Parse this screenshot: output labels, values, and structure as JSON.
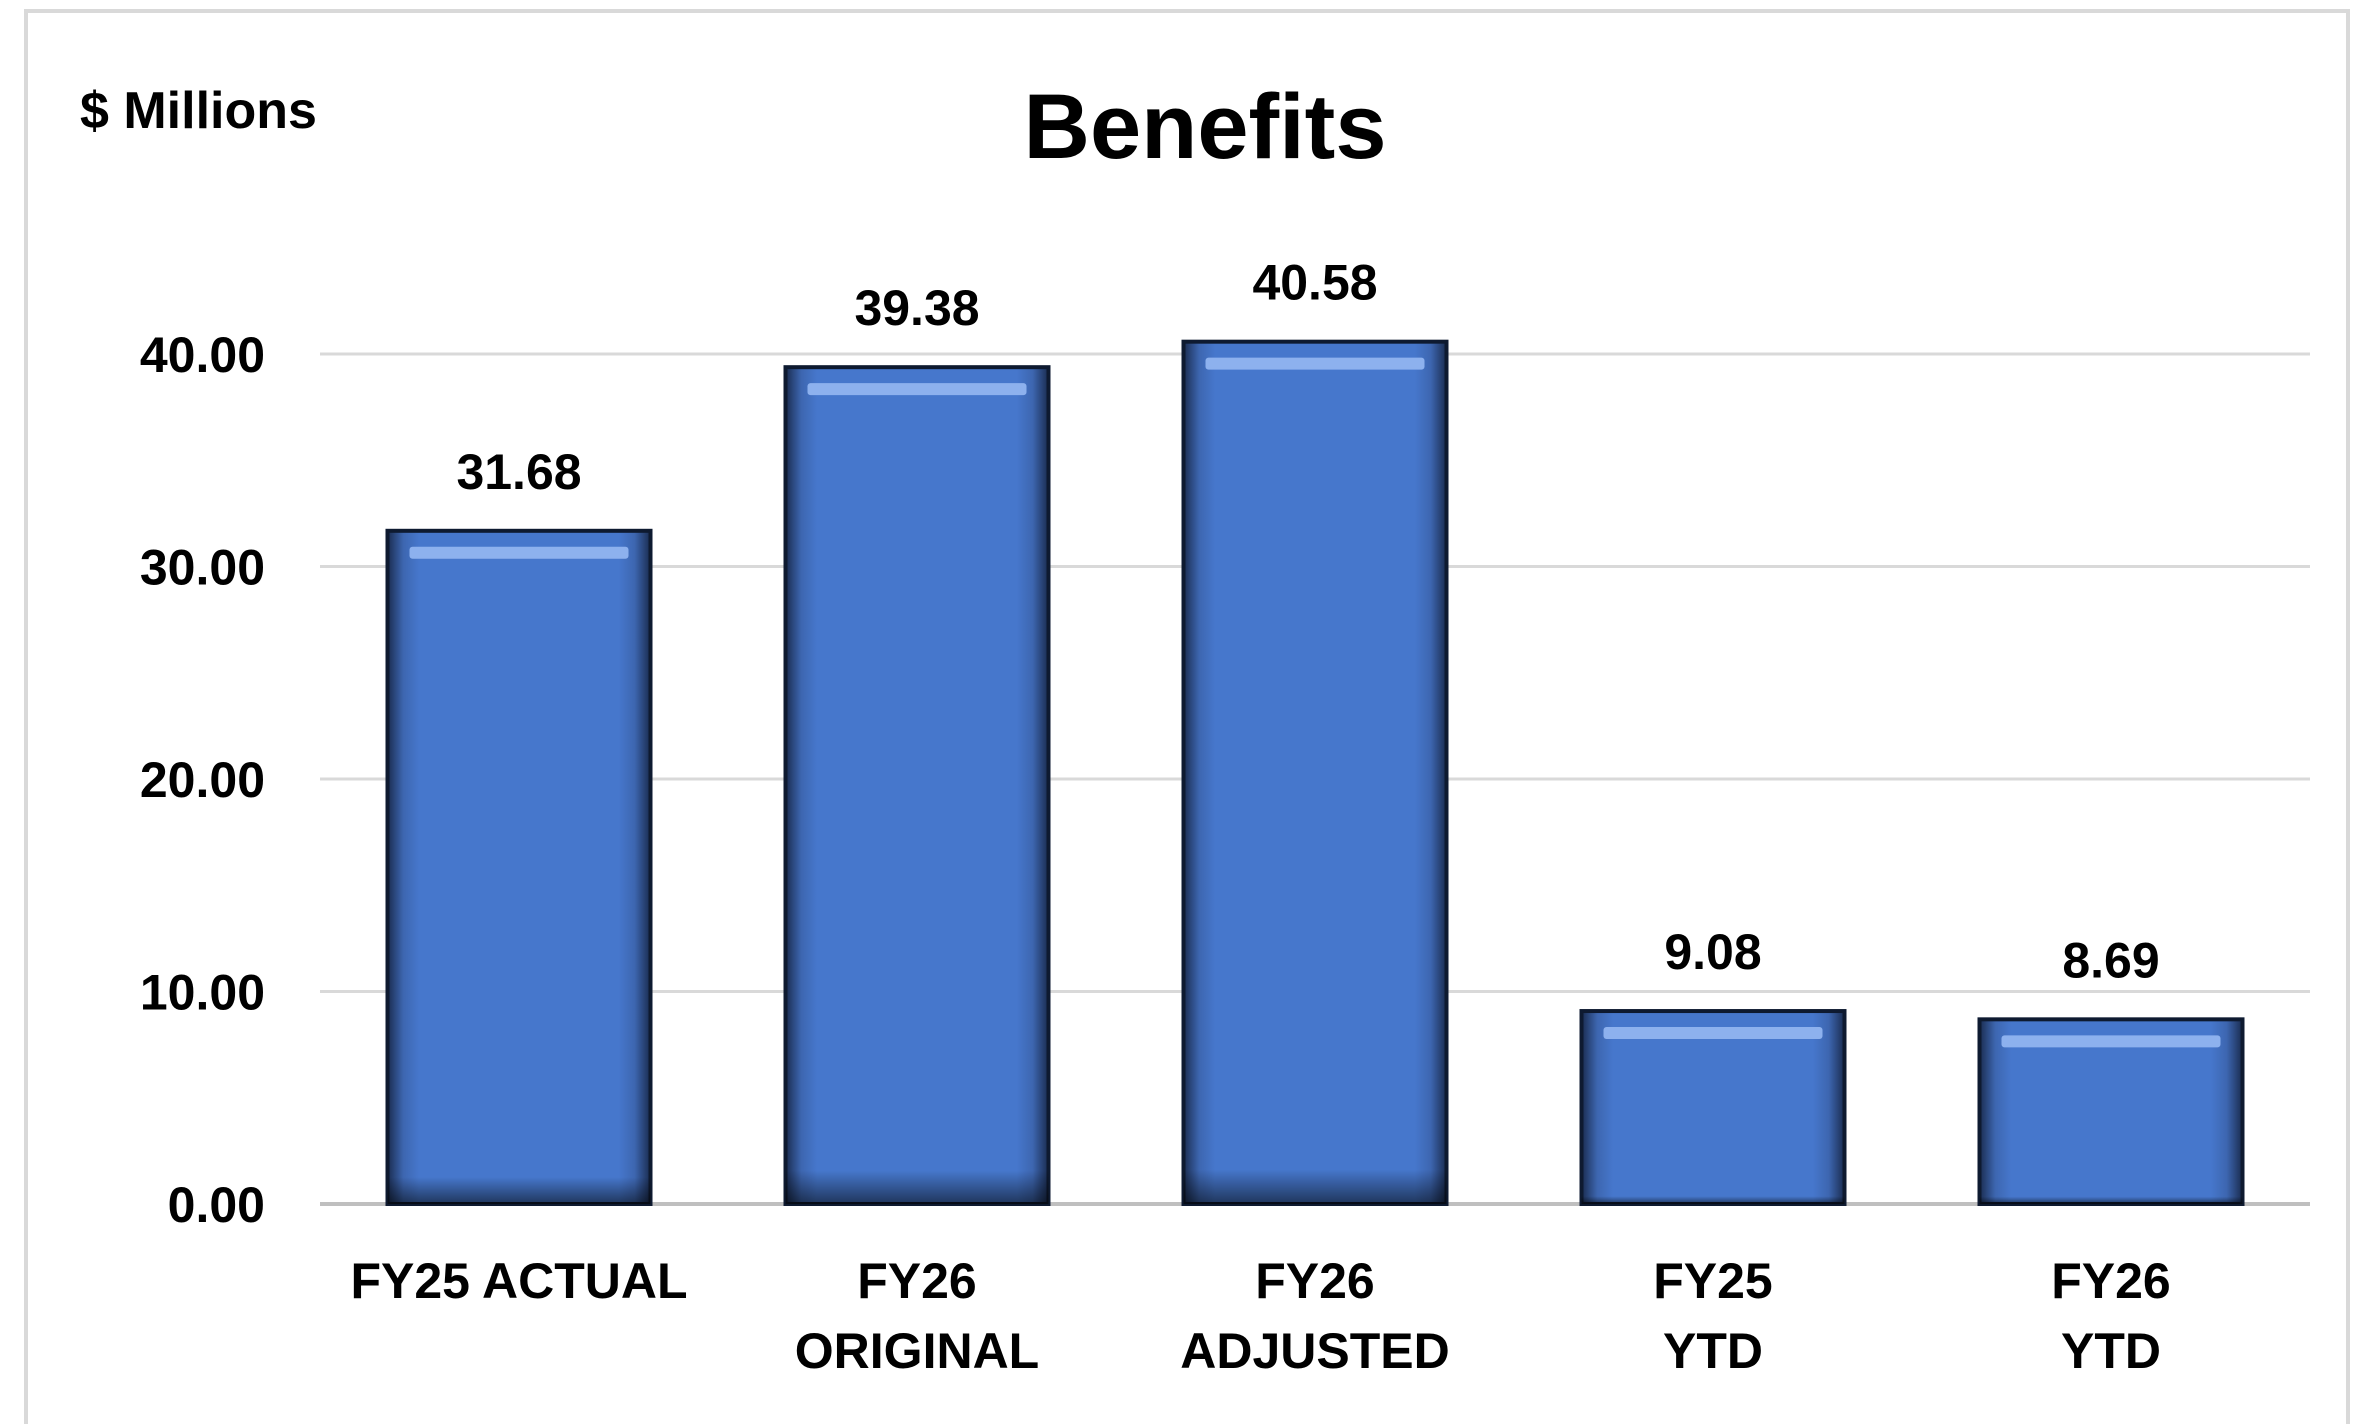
{
  "chart_data": {
    "type": "bar",
    "title": "Benefits",
    "unit_label": "$ Millions",
    "xlabel": "",
    "ylabel": "",
    "ylim": [
      0,
      40
    ],
    "yticks": [
      "0.00",
      "10.00",
      "20.00",
      "30.00",
      "40.00"
    ],
    "grid": true,
    "legend": "none",
    "bar_color": "#4677CC",
    "categories": [
      [
        "FY25    ACTUAL"
      ],
      [
        "FY26",
        "ORIGINAL"
      ],
      [
        "FY26",
        "ADJUSTED"
      ],
      [
        "FY25",
        "YTD"
      ],
      [
        "FY26",
        "YTD"
      ]
    ],
    "values": [
      31.68,
      39.38,
      40.58,
      9.08,
      8.69
    ],
    "value_labels": [
      "31.68",
      "39.38",
      "40.58",
      "9.08",
      "8.69"
    ]
  }
}
